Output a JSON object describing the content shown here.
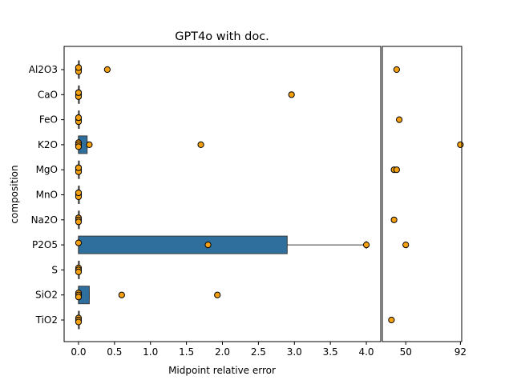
{
  "chart_data": {
    "type": "box",
    "title": "GPT4o with doc.",
    "xlabel": "Midpoint relative error",
    "ylabel": "composition",
    "categories": [
      "Al2O3",
      "CaO",
      "FeO",
      "K2O",
      "MgO",
      "MnO",
      "Na2O",
      "P2O5",
      "S",
      "SiO2",
      "TiO2"
    ],
    "main_panel": {
      "xlim": [
        -0.2,
        4.2
      ],
      "xticks": [
        0.0,
        0.5,
        1.0,
        1.5,
        2.0,
        2.5,
        3.0,
        3.5,
        4.0
      ],
      "xtick_labels": [
        "0.0",
        "0.5",
        "1.0",
        "1.5",
        "2.0",
        "2.5",
        "3.0",
        "3.5",
        "4.0"
      ]
    },
    "outlier_panel": {
      "xlim": [
        32,
        93
      ],
      "xticks": [
        50,
        92
      ],
      "xtick_labels": [
        "50",
        "92"
      ]
    },
    "boxes": [
      {
        "category": "Al2O3",
        "q1": 0.0,
        "median": 0.0,
        "q3": 0.0,
        "whisker_low": 0.0,
        "whisker_high": 0.0
      },
      {
        "category": "CaO",
        "q1": 0.0,
        "median": 0.0,
        "q3": 0.0,
        "whisker_low": 0.0,
        "whisker_high": 0.0
      },
      {
        "category": "FeO",
        "q1": 0.0,
        "median": 0.0,
        "q3": 0.0,
        "whisker_low": 0.0,
        "whisker_high": 0.0
      },
      {
        "category": "K2O",
        "q1": 0.0,
        "median": 0.0,
        "q3": 0.12,
        "whisker_low": 0.0,
        "whisker_high": 0.12
      },
      {
        "category": "MgO",
        "q1": 0.0,
        "median": 0.0,
        "q3": 0.0,
        "whisker_low": 0.0,
        "whisker_high": 0.0
      },
      {
        "category": "MnO",
        "q1": 0.0,
        "median": 0.0,
        "q3": 0.0,
        "whisker_low": 0.0,
        "whisker_high": 0.0
      },
      {
        "category": "Na2O",
        "q1": 0.0,
        "median": 0.0,
        "q3": 0.0,
        "whisker_low": 0.0,
        "whisker_high": 0.0
      },
      {
        "category": "P2O5",
        "q1": 0.0,
        "median": 0.0,
        "q3": 2.9,
        "whisker_low": 0.0,
        "whisker_high": 4.0
      },
      {
        "category": "S",
        "q1": 0.0,
        "median": 0.0,
        "q3": 0.0,
        "whisker_low": 0.0,
        "whisker_high": 0.0
      },
      {
        "category": "SiO2",
        "q1": 0.0,
        "median": 0.0,
        "q3": 0.15,
        "whisker_low": 0.0,
        "whisker_high": 0.15
      },
      {
        "category": "TiO2",
        "q1": 0.0,
        "median": 0.0,
        "q3": 0.0,
        "whisker_low": 0.0,
        "whisker_high": 0.0
      }
    ],
    "points": [
      {
        "category": "Al2O3",
        "values": [
          0.0,
          0.0,
          0.0,
          0.0,
          0.4
        ],
        "outliers_panel": [
          43
        ]
      },
      {
        "category": "CaO",
        "values": [
          0.0,
          0.0,
          0.0,
          0.0,
          2.96
        ],
        "outliers_panel": []
      },
      {
        "category": "FeO",
        "values": [
          0.0,
          0.0,
          0.0,
          0.0
        ],
        "outliers_panel": [
          45
        ]
      },
      {
        "category": "K2O",
        "values": [
          0.0,
          0.0,
          0.0,
          0.15,
          1.7
        ],
        "outliers_panel": [
          92
        ]
      },
      {
        "category": "MgO",
        "values": [
          0.0,
          0.0,
          0.0,
          0.0
        ],
        "outliers_panel": [
          41,
          43
        ]
      },
      {
        "category": "MnO",
        "values": [
          0.0,
          0.0,
          0.0,
          0.0
        ],
        "outliers_panel": []
      },
      {
        "category": "Na2O",
        "values": [
          0.0,
          0.0,
          0.0
        ],
        "outliers_panel": [
          41
        ]
      },
      {
        "category": "P2O5",
        "values": [
          0.0,
          1.8,
          4.0
        ],
        "outliers_panel": [
          50
        ]
      },
      {
        "category": "S",
        "values": [
          0.0,
          0.0,
          0.0
        ],
        "outliers_panel": []
      },
      {
        "category": "SiO2",
        "values": [
          0.0,
          0.0,
          0.0,
          0.6,
          1.93
        ],
        "outliers_panel": []
      },
      {
        "category": "TiO2",
        "values": [
          0.0,
          0.0,
          0.0
        ],
        "outliers_panel": [
          39
        ]
      }
    ],
    "colors": {
      "box": "#2e6f9e",
      "point": "#f5a00f",
      "edge": "#000000"
    }
  }
}
